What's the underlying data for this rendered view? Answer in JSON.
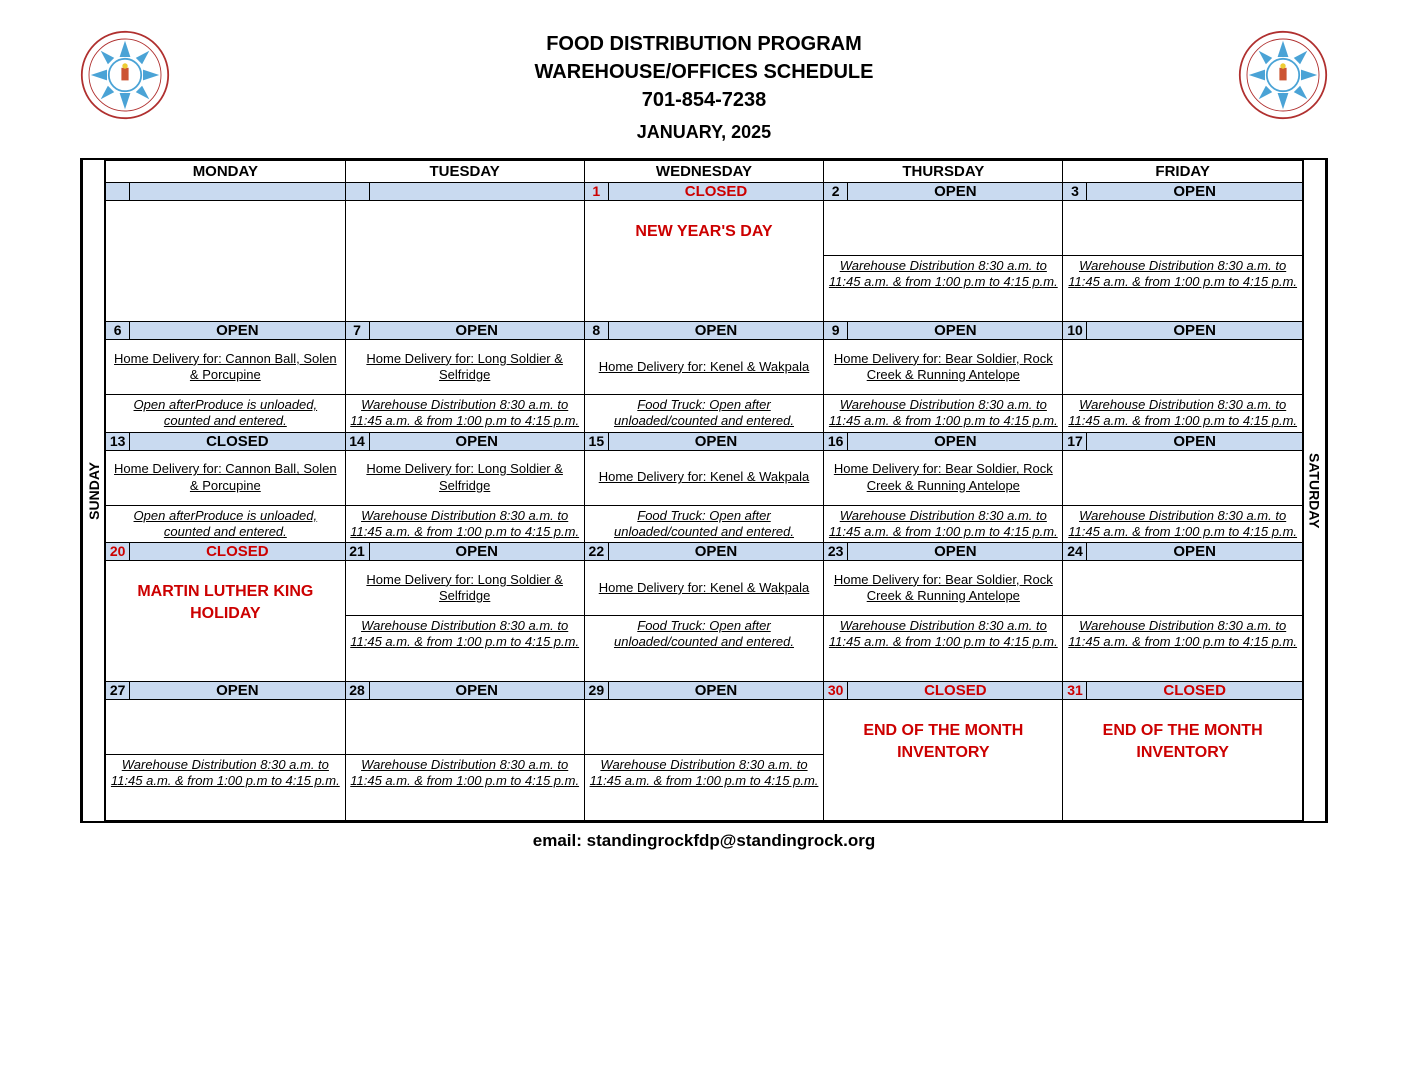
{
  "colors": {
    "header_bg": "#c9daf0",
    "red": "#cc0000",
    "border": "#000000",
    "seal_outer": "#b0302f",
    "seal_inner": "#4aa3d6"
  },
  "header": {
    "line1": "FOOD DISTRIBUTION PROGRAM",
    "line2": "WAREHOUSE/OFFICES SCHEDULE",
    "line3": "701-854-7238",
    "month": "JANUARY, 2025"
  },
  "side": {
    "left": "SUNDAY",
    "right": "SATURDAY"
  },
  "days": [
    "MONDAY",
    "TUESDAY",
    "WEDNESDAY",
    "THURSDAY",
    "FRIDAY"
  ],
  "status": {
    "open": "OPEN",
    "closed": "CLOSED"
  },
  "text": {
    "wh": "Warehouse Distribution 8:30 a.m. to 11:45 a.m. & from 1:00 p.m to 4:15 p.m.",
    "produce": "Open afterProduce is unloaded, counted and entered.",
    "foodtruck": "Food Truck:  Open after unloaded/counted and entered.",
    "hd_cannon": "Home Delivery for:  Cannon Ball, Solen & Porcupine",
    "hd_long": "Home Delivery for:  Long Soldier & Selfridge",
    "hd_kenel": "Home Delivery for:  Kenel & Wakpala",
    "hd_bear": "Home Delivery for:  Bear Soldier, Rock Creek & Running Antelope",
    "ny": "NEW YEAR'S DAY",
    "mlk": "MARTIN LUTHER KING HOLIDAY",
    "eom": "END OF THE MONTH INVENTORY"
  },
  "footer": "email:  standingrockfdp@standingrock.org",
  "weeks": [
    [
      {
        "num": "",
        "status": "",
        "red": false,
        "upper": "",
        "lower": ""
      },
      {
        "num": "",
        "status": "",
        "red": false,
        "upper": "",
        "lower": ""
      },
      {
        "num": "1",
        "status": "closed",
        "red": true,
        "holiday": "ny"
      },
      {
        "num": "2",
        "status": "open",
        "red": false,
        "upper": "",
        "lower": "wh"
      },
      {
        "num": "3",
        "status": "open",
        "red": false,
        "upper": "",
        "lower": "wh"
      }
    ],
    [
      {
        "num": "6",
        "status": "open",
        "red": false,
        "upper": "hd_cannon",
        "lower": "produce"
      },
      {
        "num": "7",
        "status": "open",
        "red": false,
        "upper": "hd_long",
        "lower": "wh"
      },
      {
        "num": "8",
        "status": "open",
        "red": false,
        "upper": "hd_kenel",
        "lower": "foodtruck"
      },
      {
        "num": "9",
        "status": "open",
        "red": false,
        "upper": "hd_bear",
        "lower": "wh"
      },
      {
        "num": "10",
        "status": "open",
        "red": false,
        "upper": "",
        "lower": "wh"
      }
    ],
    [
      {
        "num": "13",
        "status": "closed",
        "red": false,
        "upper": "hd_cannon",
        "lower": "produce"
      },
      {
        "num": "14",
        "status": "open",
        "red": false,
        "upper": "hd_long",
        "lower": "wh"
      },
      {
        "num": "15",
        "status": "open",
        "red": false,
        "upper": "hd_kenel",
        "lower": "foodtruck"
      },
      {
        "num": "16",
        "status": "open",
        "red": false,
        "upper": "hd_bear",
        "lower": "wh"
      },
      {
        "num": "17",
        "status": "open",
        "red": false,
        "upper": "",
        "lower": "wh"
      }
    ],
    [
      {
        "num": "20",
        "status": "closed",
        "red": true,
        "holiday": "mlk"
      },
      {
        "num": "21",
        "status": "open",
        "red": false,
        "upper": "hd_long",
        "lower": "wh"
      },
      {
        "num": "22",
        "status": "open",
        "red": false,
        "upper": "hd_kenel",
        "lower": "foodtruck"
      },
      {
        "num": "23",
        "status": "open",
        "red": false,
        "upper": "hd_bear",
        "lower": "wh"
      },
      {
        "num": "24",
        "status": "open",
        "red": false,
        "upper": "",
        "lower": "wh"
      }
    ],
    [
      {
        "num": "27",
        "status": "open",
        "red": false,
        "upper": "",
        "lower": "wh"
      },
      {
        "num": "28",
        "status": "open",
        "red": false,
        "upper": "",
        "lower": "wh"
      },
      {
        "num": "29",
        "status": "open",
        "red": false,
        "upper": "",
        "lower": "wh"
      },
      {
        "num": "30",
        "status": "closed",
        "red": true,
        "holiday": "eom"
      },
      {
        "num": "31",
        "status": "closed",
        "red": true,
        "holiday": "eom"
      }
    ]
  ]
}
